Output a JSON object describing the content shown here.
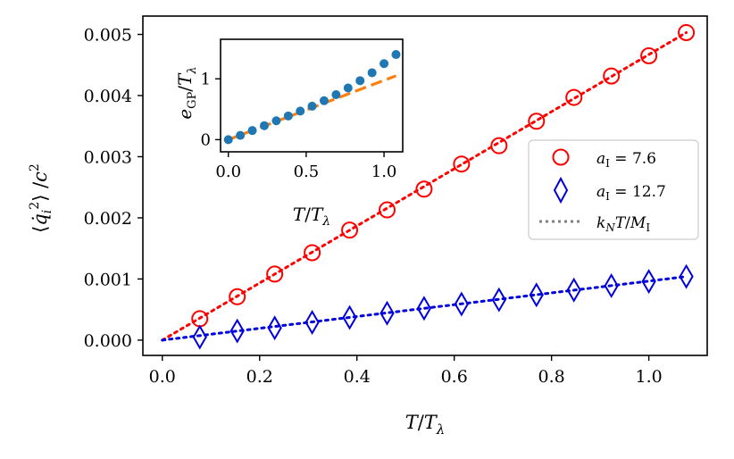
{
  "chart_data": [
    {
      "type": "scatter",
      "title": "",
      "xlabel": "T/Tλ",
      "ylabel": "⟨q̇ᵢ²⟩/c²",
      "xlim": [
        -0.04,
        1.12
      ],
      "ylim": [
        -0.00025,
        0.0053
      ],
      "xticks": [
        0.0,
        0.2,
        0.4,
        0.6,
        0.8,
        1.0
      ],
      "xtick_labels": [
        "0.0",
        "0.2",
        "0.4",
        "0.6",
        "0.8",
        "1.0"
      ],
      "yticks": [
        0.0,
        0.001,
        0.002,
        0.003,
        0.004,
        0.005
      ],
      "ytick_labels": [
        "0.000",
        "0.001",
        "0.002",
        "0.003",
        "0.004",
        "0.005"
      ],
      "legend_position": "center-right",
      "series": [
        {
          "name": "aI = 7.6",
          "legend_label": "aI = 7.6",
          "marker": "circle",
          "color": "#ff0000",
          "x": [
            0.077,
            0.154,
            0.231,
            0.308,
            0.385,
            0.462,
            0.538,
            0.615,
            0.692,
            0.769,
            0.846,
            0.923,
            1.0,
            1.077
          ],
          "y": [
            0.00035,
            0.00071,
            0.00108,
            0.00143,
            0.0018,
            0.00213,
            0.00247,
            0.00288,
            0.00318,
            0.00358,
            0.00397,
            0.00432,
            0.00465,
            0.00503
          ]
        },
        {
          "name": "aI = 12.7",
          "legend_label": "aI = 12.7",
          "marker": "diamond",
          "color": "#0000dd",
          "x": [
            0.077,
            0.154,
            0.231,
            0.308,
            0.385,
            0.462,
            0.538,
            0.615,
            0.692,
            0.769,
            0.846,
            0.923,
            1.0,
            1.077
          ],
          "y": [
            5e-05,
            0.00015,
            0.0002,
            0.00029,
            0.00037,
            0.00044,
            0.00052,
            0.00059,
            0.00066,
            0.00074,
            0.00082,
            0.00089,
            0.00096,
            0.00104
          ]
        }
      ],
      "fit_lines": [
        {
          "name": "kN T/MI (aI = 7.6)",
          "color": "#ff0000",
          "x": [
            0.0,
            1.077
          ],
          "y": [
            0.0,
            0.00503
          ]
        },
        {
          "name": "kN T/MI (aI = 12.7)",
          "color": "#0000dd",
          "x": [
            0.0,
            1.077
          ],
          "y": [
            0.0,
            0.00104
          ]
        }
      ],
      "legend_fit_label": "kN T/MI",
      "legend_fit_color": "#808080"
    },
    {
      "type": "scatter",
      "title": "inset",
      "xlabel": "T/Tλ",
      "ylabel": "eGP/Tλ",
      "xlim": [
        -0.05,
        1.12
      ],
      "ylim": [
        -0.2,
        1.65
      ],
      "xticks": [
        0.0,
        0.5,
        1.0
      ],
      "xtick_labels": [
        "0.0",
        "0.5",
        "1.0"
      ],
      "yticks": [
        0,
        1
      ],
      "ytick_labels": [
        "0",
        "1"
      ],
      "series": [
        {
          "name": "eGP/Tλ",
          "marker": "filled-circle",
          "color": "#1f77b4",
          "x": [
            0.0,
            0.077,
            0.154,
            0.231,
            0.308,
            0.385,
            0.462,
            0.538,
            0.615,
            0.692,
            0.769,
            0.846,
            0.923,
            1.0,
            1.077
          ],
          "y": [
            0.0,
            0.07,
            0.15,
            0.23,
            0.31,
            0.39,
            0.47,
            0.55,
            0.64,
            0.74,
            0.85,
            0.97,
            1.1,
            1.25,
            1.4
          ]
        }
      ],
      "dashed_line": {
        "color": "#ff7f0e",
        "x": [
          0.0,
          1.077
        ],
        "y": [
          0.0,
          1.05
        ]
      }
    }
  ]
}
